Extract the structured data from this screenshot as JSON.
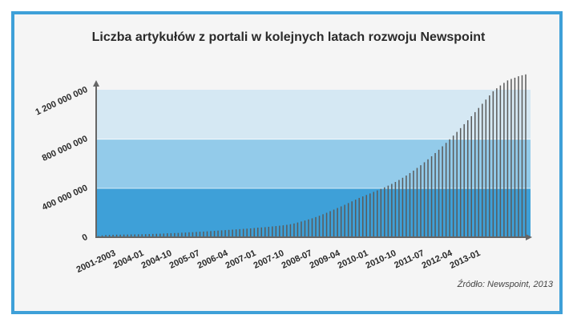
{
  "title": "Liczba artykułów z portali w kolejnych latach rozwoju Newspoint",
  "source": "Źródło: Newspoint, 2013",
  "colors": {
    "frame": "#3ea0d8",
    "band_low": "#3ea0d8",
    "band_mid": "#93cbea",
    "band_high": "#d5e8f3",
    "bars": "#5a5a5a",
    "axis": "#666666"
  },
  "chart_data": {
    "type": "bar",
    "title": "Liczba artykułów z portali w kolejnych latach rozwoju Newspoint",
    "xlabel": "",
    "ylabel": "",
    "ylim": [
      0,
      1300000000
    ],
    "y_ticks": [
      {
        "value": 0,
        "label": "0"
      },
      {
        "value": 400000000,
        "label": "400 000 000"
      },
      {
        "value": 800000000,
        "label": "800 000 000"
      },
      {
        "value": 1200000000,
        "label": "1 200 000 000"
      }
    ],
    "background_bands": [
      {
        "from": 0,
        "to": 400000000
      },
      {
        "from": 400000000,
        "to": 800000000
      },
      {
        "from": 800000000,
        "to": 1200000000
      }
    ],
    "x_tick_labels": [
      "2001-2003",
      "2004-01",
      "2004-10",
      "2005-07",
      "2006-04",
      "2007-01",
      "2007-10",
      "2008-07",
      "2009-04",
      "2010-01",
      "2010-10",
      "2011-07",
      "2012-04",
      "2013-01"
    ],
    "categories": [
      "2001-2003",
      "2004-01",
      "2004-02",
      "2004-03",
      "2004-04",
      "2004-05",
      "2004-06",
      "2004-07",
      "2004-08",
      "2004-09",
      "2004-10",
      "2004-11",
      "2004-12",
      "2005-01",
      "2005-02",
      "2005-03",
      "2005-04",
      "2005-05",
      "2005-06",
      "2005-07",
      "2005-08",
      "2005-09",
      "2005-10",
      "2005-11",
      "2005-12",
      "2006-01",
      "2006-02",
      "2006-03",
      "2006-04",
      "2006-05",
      "2006-06",
      "2006-07",
      "2006-08",
      "2006-09",
      "2006-10",
      "2006-11",
      "2006-12",
      "2007-01",
      "2007-02",
      "2007-03",
      "2007-04",
      "2007-05",
      "2007-06",
      "2007-07",
      "2007-08",
      "2007-09",
      "2007-10",
      "2007-11",
      "2007-12",
      "2008-01",
      "2008-02",
      "2008-03",
      "2008-04",
      "2008-05",
      "2008-06",
      "2008-07",
      "2008-08",
      "2008-09",
      "2008-10",
      "2008-11",
      "2008-12",
      "2009-01",
      "2009-02",
      "2009-03",
      "2009-04",
      "2009-05",
      "2009-06",
      "2009-07",
      "2009-08",
      "2009-09",
      "2009-10",
      "2009-11",
      "2009-12",
      "2010-01",
      "2010-02",
      "2010-03",
      "2010-04",
      "2010-05",
      "2010-06",
      "2010-07",
      "2010-08",
      "2010-09",
      "2010-10",
      "2010-11",
      "2010-12",
      "2011-01",
      "2011-02",
      "2011-03",
      "2011-04",
      "2011-05",
      "2011-06",
      "2011-07",
      "2011-08",
      "2011-09",
      "2011-10",
      "2011-11",
      "2011-12",
      "2012-01",
      "2012-02",
      "2012-03",
      "2012-04",
      "2012-05",
      "2012-06",
      "2012-07",
      "2012-08",
      "2012-09",
      "2012-10",
      "2012-11",
      "2012-12",
      "2013-01",
      "2013-02",
      "2013-03",
      "2013-04",
      "2013-05",
      "2013-06",
      "2013-07",
      "2013-08",
      "2013-09",
      "2013-10"
    ],
    "values": [
      10000000,
      15000000,
      18000000,
      19000000,
      20000000,
      21000000,
      21000000,
      22000000,
      22000000,
      23000000,
      23000000,
      24000000,
      24000000,
      25000000,
      26000000,
      27000000,
      28000000,
      29000000,
      30000000,
      32000000,
      33000000,
      34000000,
      35000000,
      37000000,
      38000000,
      40000000,
      41000000,
      43000000,
      45000000,
      46000000,
      48000000,
      50000000,
      52000000,
      54000000,
      56000000,
      58000000,
      60000000,
      62000000,
      64000000,
      66000000,
      68000000,
      70000000,
      72000000,
      75000000,
      78000000,
      80000000,
      82000000,
      85000000,
      88000000,
      91000000,
      94000000,
      97000000,
      101000000,
      106000000,
      112000000,
      120000000,
      128000000,
      136000000,
      145000000,
      154000000,
      164000000,
      175000000,
      187000000,
      199000000,
      212000000,
      225000000,
      238000000,
      251000000,
      264000000,
      278000000,
      292000000,
      306000000,
      320000000,
      332000000,
      344000000,
      356000000,
      369000000,
      381000000,
      394000000,
      406000000,
      420000000,
      434000000,
      450000000,
      466000000,
      484000000,
      502000000,
      522000000,
      542000000,
      564000000,
      586000000,
      610000000,
      634000000,
      659000000,
      685000000,
      712000000,
      740000000,
      768000000,
      797000000,
      827000000,
      857000000,
      888000000,
      920000000,
      952000000,
      985000000,
      1018000000,
      1052000000,
      1086000000,
      1120000000,
      1154000000,
      1188000000,
      1212000000,
      1235000000,
      1256000000,
      1276000000,
      1288000000,
      1298000000,
      1310000000,
      1318000000,
      1325000000
    ]
  }
}
